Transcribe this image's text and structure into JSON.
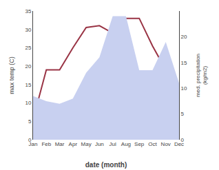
{
  "chart_data": {
    "type": "line",
    "xlabel": "date (month)",
    "ylabel": "max temp (C)",
    "y2label": "med. precipitation\n(kg/m2)",
    "categories": [
      "Jan",
      "Feb",
      "Mar",
      "Apr",
      "May",
      "Jun",
      "Jul",
      "Aug",
      "Sep",
      "Oct",
      "Nov",
      "Dec"
    ],
    "series": [
      {
        "type": "area",
        "axis": "y2",
        "color": "#c8d0f0",
        "values": [
          8.5,
          7.5,
          7.0,
          8.0,
          13.0,
          16.0,
          24.0,
          24.0,
          13.5,
          13.5,
          19.0,
          11.0
        ]
      },
      {
        "type": "line",
        "color": "#993344",
        "values": [
          5.5,
          19.0,
          19.0,
          25.0,
          30.5,
          31.0,
          29.0,
          33.0,
          33.0,
          25.5,
          19.0,
          9.5
        ]
      }
    ],
    "ylim": [
      0,
      35
    ],
    "yticks": [
      0,
      5,
      10,
      15,
      20,
      25,
      30,
      35
    ],
    "y2lim": [
      0,
      25
    ],
    "y2ticks": [
      0,
      5,
      10,
      15,
      20
    ],
    "grid": false
  }
}
